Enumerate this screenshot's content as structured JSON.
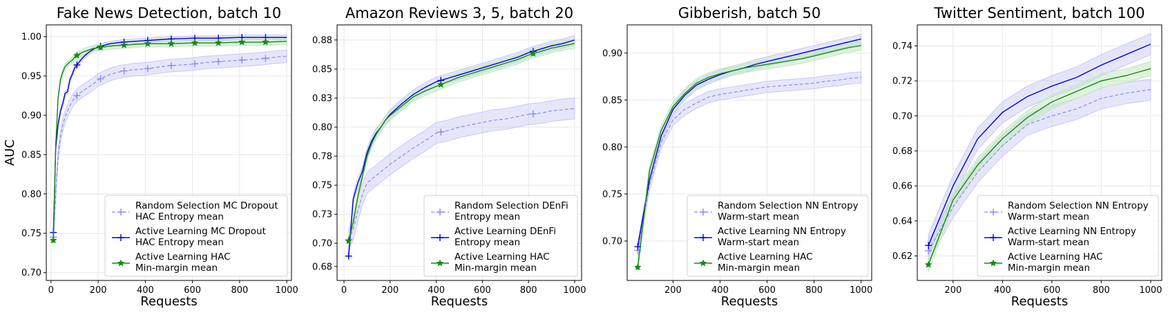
{
  "colors": {
    "random": "#8a8aee",
    "active": "#0000dd",
    "hac": "#138a13",
    "random_band": "#c8c8f6",
    "active_band": "#c6c6f4",
    "hac_band": "#c3e8c3",
    "grid": "#e6e6e6"
  },
  "chart_data": [
    {
      "type": "line",
      "title": "Fake News Detection, batch 10",
      "xlabel": "Requests",
      "ylabel": "AUC",
      "xlim": [
        -20,
        1020
      ],
      "ylim": [
        0.69,
        1.015
      ],
      "xticks": [
        0,
        200,
        400,
        600,
        800,
        1000
      ],
      "yticks": [
        0.7,
        0.75,
        0.8,
        0.85,
        0.9,
        0.95,
        1.0
      ],
      "ytick_labels": [
        "0.70",
        "0.75",
        "0.80",
        "0.85",
        "0.90",
        "0.95",
        "1.00"
      ],
      "grid": true,
      "legend_position": "lower right",
      "series": [
        {
          "name": "Random Selection MC Dropout HAC Entropy mean",
          "legend_lines": [
            "Random Selection MC Dropout",
            "HAC Entropy mean"
          ],
          "style": "random",
          "band": 0.008,
          "marker_x": [
            10,
            110,
            210,
            310,
            410,
            510,
            610,
            710,
            810,
            910
          ],
          "x": [
            10,
            20,
            30,
            40,
            50,
            60,
            70,
            80,
            90,
            100,
            120,
            140,
            160,
            180,
            200,
            250,
            300,
            350,
            400,
            450,
            500,
            550,
            600,
            650,
            700,
            750,
            800,
            850,
            900,
            950,
            1000
          ],
          "y": [
            0.745,
            0.8,
            0.848,
            0.872,
            0.888,
            0.898,
            0.905,
            0.912,
            0.918,
            0.922,
            0.928,
            0.932,
            0.936,
            0.94,
            0.945,
            0.952,
            0.956,
            0.958,
            0.959,
            0.961,
            0.963,
            0.964,
            0.965,
            0.967,
            0.968,
            0.969,
            0.97,
            0.971,
            0.972,
            0.974,
            0.975
          ]
        },
        {
          "name": "Active Learning MC Dropout HAC Entropy mean",
          "legend_lines": [
            "Active Learning MC Dropout",
            "HAC Entropy mean"
          ],
          "style": "active",
          "band": 0.003,
          "marker_x": [
            10,
            110,
            210,
            310,
            410,
            510,
            610,
            710,
            810,
            910
          ],
          "x": [
            10,
            20,
            30,
            40,
            50,
            60,
            70,
            80,
            90,
            100,
            120,
            140,
            160,
            180,
            200,
            250,
            300,
            350,
            400,
            450,
            500,
            600,
            700,
            800,
            900,
            1000
          ],
          "y": [
            0.751,
            0.858,
            0.888,
            0.905,
            0.915,
            0.928,
            0.93,
            0.945,
            0.952,
            0.96,
            0.968,
            0.975,
            0.98,
            0.984,
            0.987,
            0.991,
            0.993,
            0.994,
            0.995,
            0.996,
            0.997,
            0.998,
            0.998,
            0.999,
            0.999,
            0.999
          ]
        },
        {
          "name": "Active Learning HAC Min-margin mean",
          "legend_lines": [
            "Active Learning HAC",
            "Min-margin mean"
          ],
          "style": "hac",
          "band": 0.004,
          "marker_x": [
            10,
            110,
            210,
            310,
            410,
            510,
            610,
            710,
            810,
            910
          ],
          "x": [
            10,
            20,
            30,
            40,
            50,
            60,
            70,
            80,
            90,
            100,
            120,
            140,
            160,
            180,
            200,
            250,
            300,
            350,
            400,
            500,
            600,
            700,
            800,
            900,
            1000
          ],
          "y": [
            0.741,
            0.862,
            0.922,
            0.945,
            0.955,
            0.962,
            0.965,
            0.968,
            0.97,
            0.974,
            0.978,
            0.981,
            0.983,
            0.985,
            0.986,
            0.988,
            0.989,
            0.99,
            0.991,
            0.991,
            0.992,
            0.992,
            0.993,
            0.993,
            0.994
          ]
        }
      ]
    },
    {
      "type": "line",
      "title": "Amazon Reviews 3, 5, batch 20",
      "xlabel": "Requests",
      "ylabel": "",
      "xlim": [
        -30,
        1030
      ],
      "ylim": [
        0.668,
        0.888
      ],
      "xticks": [
        0,
        200,
        400,
        600,
        800,
        1000
      ],
      "yticks": [
        0.68,
        0.7,
        0.725,
        0.75,
        0.775,
        0.8,
        0.825,
        0.85,
        0.875
      ],
      "ytick_labels": [
        "0.68",
        "0.70",
        "0.73",
        "0.75",
        "0.78",
        "0.80",
        "0.83",
        "0.85",
        "0.88"
      ],
      "grid": true,
      "legend_position": "lower right",
      "series": [
        {
          "name": "Random Selection DEnFi Entropy mean",
          "legend_lines": [
            "Random Selection DEnFi",
            "Entropy mean"
          ],
          "style": "random",
          "band": 0.009,
          "marker_x": [
            20,
            420,
            820
          ],
          "x": [
            20,
            40,
            60,
            80,
            100,
            150,
            200,
            250,
            300,
            350,
            400,
            450,
            500,
            550,
            600,
            650,
            700,
            750,
            800,
            850,
            900,
            950,
            1000
          ],
          "y": [
            0.703,
            0.712,
            0.728,
            0.742,
            0.752,
            0.76,
            0.768,
            0.775,
            0.782,
            0.788,
            0.795,
            0.797,
            0.8,
            0.802,
            0.804,
            0.806,
            0.807,
            0.809,
            0.811,
            0.812,
            0.814,
            0.815,
            0.816
          ]
        },
        {
          "name": "Active Learning DEnFi Entropy mean",
          "legend_lines": [
            "Active Learning DEnFi",
            "Entropy mean"
          ],
          "style": "active",
          "band": 0.004,
          "marker_x": [
            20,
            420,
            820
          ],
          "x": [
            20,
            40,
            60,
            80,
            100,
            120,
            140,
            160,
            180,
            200,
            250,
            300,
            350,
            400,
            450,
            500,
            550,
            600,
            650,
            700,
            750,
            800,
            850,
            900,
            950,
            1000
          ],
          "y": [
            0.689,
            0.738,
            0.752,
            0.762,
            0.778,
            0.788,
            0.795,
            0.8,
            0.806,
            0.811,
            0.82,
            0.828,
            0.834,
            0.839,
            0.842,
            0.845,
            0.848,
            0.851,
            0.854,
            0.857,
            0.86,
            0.864,
            0.867,
            0.87,
            0.872,
            0.875
          ]
        },
        {
          "name": "Active Learning HAC Min-margin mean",
          "legend_lines": [
            "Active Learning HAC",
            "Min-margin mean"
          ],
          "style": "hac",
          "band": 0.004,
          "marker_x": [
            20,
            420,
            820
          ],
          "x": [
            20,
            40,
            60,
            80,
            100,
            120,
            140,
            160,
            180,
            200,
            250,
            300,
            350,
            400,
            450,
            500,
            550,
            600,
            650,
            700,
            750,
            800,
            850,
            900,
            950,
            1000
          ],
          "y": [
            0.702,
            0.718,
            0.74,
            0.758,
            0.775,
            0.786,
            0.794,
            0.8,
            0.806,
            0.81,
            0.818,
            0.826,
            0.831,
            0.835,
            0.839,
            0.843,
            0.846,
            0.849,
            0.852,
            0.855,
            0.858,
            0.862,
            0.865,
            0.868,
            0.87,
            0.872
          ]
        }
      ]
    },
    {
      "type": "line",
      "title": "Gibberish, batch 50",
      "xlabel": "Requests",
      "ylabel": "",
      "xlim": [
        5,
        1045
      ],
      "ylim": [
        0.658,
        0.93
      ],
      "xticks": [
        200,
        400,
        600,
        800,
        1000
      ],
      "yticks": [
        0.7,
        0.75,
        0.8,
        0.85,
        0.9
      ],
      "ytick_labels": [
        "0.70",
        "0.75",
        "0.80",
        "0.85",
        "0.90"
      ],
      "grid": true,
      "legend_position": "lower right",
      "series": [
        {
          "name": "Random Selection NN Entropy Warm-start mean",
          "legend_lines": [
            "Random Selection NN Entropy",
            "Warm-start mean"
          ],
          "style": "random",
          "band": 0.006,
          "marker_x": [
            50
          ],
          "x": [
            50,
            100,
            150,
            200,
            250,
            300,
            350,
            400,
            450,
            500,
            550,
            600,
            650,
            700,
            750,
            800,
            850,
            900,
            950,
            1000
          ],
          "y": [
            0.69,
            0.76,
            0.805,
            0.829,
            0.84,
            0.847,
            0.853,
            0.856,
            0.858,
            0.86,
            0.862,
            0.864,
            0.865,
            0.866,
            0.867,
            0.868,
            0.87,
            0.871,
            0.873,
            0.874
          ]
        },
        {
          "name": "Active Learning NN Entropy Warm-start mean",
          "legend_lines": [
            "Active Learning NN Entropy",
            "Warm-start mean"
          ],
          "style": "active",
          "band": 0.005,
          "marker_x": [
            50
          ],
          "x": [
            50,
            100,
            150,
            200,
            250,
            300,
            350,
            400,
            450,
            500,
            550,
            600,
            650,
            700,
            750,
            800,
            850,
            900,
            950,
            1000
          ],
          "y": [
            0.694,
            0.765,
            0.812,
            0.84,
            0.855,
            0.866,
            0.872,
            0.877,
            0.881,
            0.884,
            0.888,
            0.891,
            0.894,
            0.897,
            0.9,
            0.903,
            0.906,
            0.909,
            0.912,
            0.915
          ]
        },
        {
          "name": "Active Learning HAC Min-margin mean",
          "legend_lines": [
            "Active Learning HAC",
            "Min-margin mean"
          ],
          "style": "hac",
          "band": 0.005,
          "marker_x": [
            50
          ],
          "x": [
            50,
            100,
            150,
            200,
            250,
            300,
            350,
            400,
            450,
            500,
            550,
            600,
            650,
            700,
            750,
            800,
            850,
            900,
            950,
            1000
          ],
          "y": [
            0.672,
            0.775,
            0.818,
            0.843,
            0.857,
            0.868,
            0.874,
            0.878,
            0.881,
            0.884,
            0.886,
            0.888,
            0.89,
            0.892,
            0.894,
            0.897,
            0.9,
            0.903,
            0.906,
            0.908
          ]
        }
      ]
    },
    {
      "type": "line",
      "title": "Twitter Sentiment, batch 100",
      "xlabel": "Requests",
      "ylabel": "",
      "xlim": [
        55,
        1045
      ],
      "ylim": [
        0.606,
        0.752
      ],
      "xticks": [
        200,
        400,
        600,
        800,
        1000
      ],
      "yticks": [
        0.62,
        0.64,
        0.66,
        0.68,
        0.7,
        0.72,
        0.74
      ],
      "ytick_labels": [
        "0.62",
        "0.64",
        "0.66",
        "0.68",
        "0.70",
        "0.72",
        "0.74"
      ],
      "grid": true,
      "legend_position": "lower right",
      "series": [
        {
          "name": "Random Selection NN Entropy Warm-start mean",
          "legend_lines": [
            "Random Selection NN Entropy",
            "Warm-start mean"
          ],
          "style": "random",
          "band": 0.006,
          "marker_x": [
            100
          ],
          "x": [
            100,
            200,
            300,
            400,
            500,
            600,
            700,
            800,
            900,
            1000
          ],
          "y": [
            0.623,
            0.648,
            0.668,
            0.683,
            0.695,
            0.7,
            0.704,
            0.71,
            0.713,
            0.715
          ]
        },
        {
          "name": "Active Learning NN Entropy Warm-start mean",
          "legend_lines": [
            "Active Learning NN Entropy",
            "Warm-start mean"
          ],
          "style": "active",
          "band": 0.006,
          "marker_x": [
            100
          ],
          "x": [
            100,
            200,
            300,
            400,
            500,
            600,
            700,
            800,
            900,
            1000
          ],
          "y": [
            0.626,
            0.66,
            0.687,
            0.702,
            0.711,
            0.717,
            0.722,
            0.729,
            0.735,
            0.741
          ]
        },
        {
          "name": "Active Learning HAC Min-margin mean",
          "legend_lines": [
            "Active Learning HAC",
            "Min-margin mean"
          ],
          "style": "hac",
          "band": 0.004,
          "marker_x": [
            100
          ],
          "x": [
            100,
            200,
            300,
            400,
            500,
            600,
            700,
            800,
            900,
            1000
          ],
          "y": [
            0.615,
            0.652,
            0.672,
            0.687,
            0.699,
            0.708,
            0.714,
            0.72,
            0.723,
            0.727
          ]
        }
      ]
    }
  ]
}
